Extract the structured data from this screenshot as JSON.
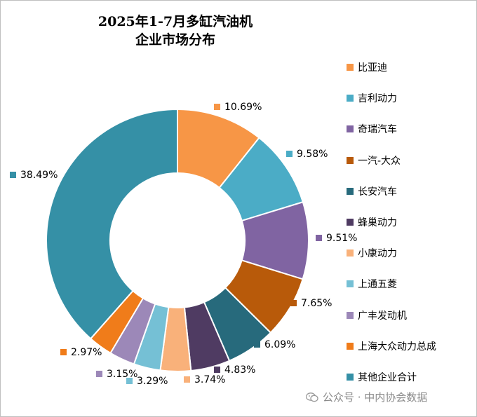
{
  "chart_data": {
    "type": "donut",
    "title_lines": [
      "2025年1-7月多缸汽油机",
      "企业市场分布"
    ],
    "series": [
      {
        "name": "比亚迪",
        "value": 10.69,
        "label": "10.69%",
        "color": "#f79646"
      },
      {
        "name": "吉利动力",
        "value": 9.58,
        "label": "9.58%",
        "color": "#4bacc6"
      },
      {
        "name": "奇瑞汽车",
        "value": 9.51,
        "label": "9.51%",
        "color": "#8064a2"
      },
      {
        "name": "一汽-大众",
        "value": 7.65,
        "label": "7.65%",
        "color": "#b85a0a"
      },
      {
        "name": "长安汽车",
        "value": 6.09,
        "label": "6.09%",
        "color": "#276a7c"
      },
      {
        "name": "蜂巢动力",
        "value": 4.83,
        "label": "4.83%",
        "color": "#4f3b62"
      },
      {
        "name": "小康动力",
        "value": 3.74,
        "label": "3.74%",
        "color": "#f9b17a"
      },
      {
        "name": "上通五菱",
        "value": 3.29,
        "label": "3.29%",
        "color": "#75c0d5"
      },
      {
        "name": "广丰发动机",
        "value": 3.15,
        "label": "3.15%",
        "color": "#9c88b8"
      },
      {
        "name": "上海大众动力总成",
        "value": 2.97,
        "label": "2.97%",
        "color": "#f07c1a"
      },
      {
        "name": "其他企业合计",
        "value": 38.49,
        "label": "38.49%",
        "color": "#3590a6"
      }
    ],
    "legend_position": "right"
  },
  "watermark": {
    "text": "公众号 · 中内协会数据"
  }
}
